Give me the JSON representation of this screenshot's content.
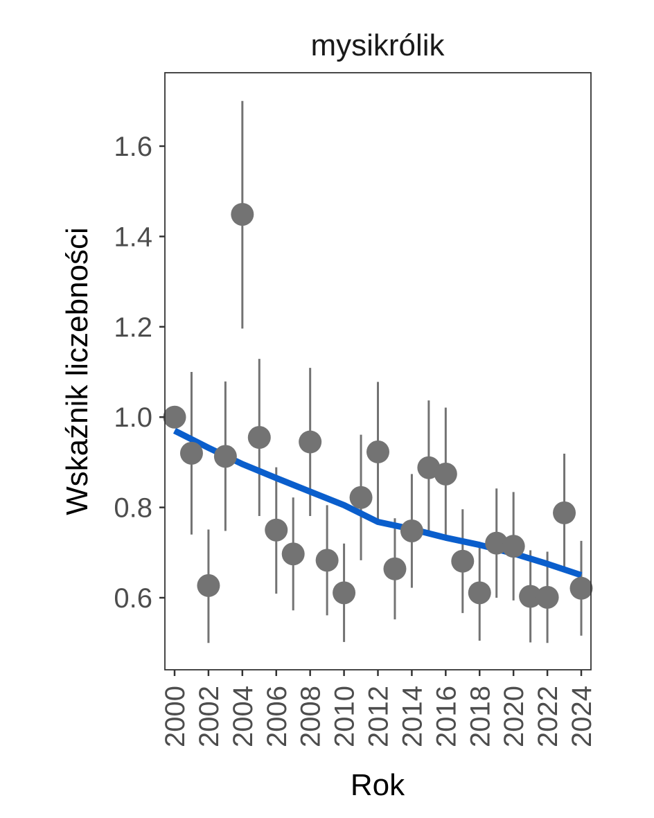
{
  "chart_data": {
    "type": "scatter",
    "title": "mysikrólik",
    "xlabel": "Rok",
    "ylabel": "Wskaźnik liczebności",
    "xlim": [
      1999.5,
      2024.5
    ],
    "ylim": [
      0.44,
      1.76
    ],
    "yticks": [
      0.6,
      0.8,
      1.0,
      1.2,
      1.4,
      1.6
    ],
    "ytick_labels": [
      "0.6",
      "0.8",
      "1.0",
      "1.2",
      "1.4",
      "1.6"
    ],
    "xticks": [
      2000,
      2002,
      2004,
      2006,
      2008,
      2010,
      2012,
      2014,
      2016,
      2018,
      2020,
      2022,
      2024
    ],
    "xtick_labels": [
      "2000",
      "2002",
      "2004",
      "2006",
      "2008",
      "2010",
      "2012",
      "2014",
      "2016",
      "2018",
      "2020",
      "2022",
      "2024"
    ],
    "grid": false,
    "points": [
      {
        "year": 2000,
        "value": 1.0,
        "lower": 1.0,
        "upper": 1.0
      },
      {
        "year": 2001,
        "value": 0.92,
        "lower": 0.74,
        "upper": 1.1
      },
      {
        "year": 2002,
        "value": 0.627,
        "lower": 0.5,
        "upper": 0.751
      },
      {
        "year": 2003,
        "value": 0.913,
        "lower": 0.748,
        "upper": 1.079
      },
      {
        "year": 2004,
        "value": 1.449,
        "lower": 1.196,
        "upper": 1.7
      },
      {
        "year": 2005,
        "value": 0.955,
        "lower": 0.781,
        "upper": 1.129
      },
      {
        "year": 2006,
        "value": 0.75,
        "lower": 0.609,
        "upper": 0.889
      },
      {
        "year": 2007,
        "value": 0.697,
        "lower": 0.572,
        "upper": 0.822
      },
      {
        "year": 2008,
        "value": 0.945,
        "lower": 0.781,
        "upper": 1.109
      },
      {
        "year": 2009,
        "value": 0.683,
        "lower": 0.561,
        "upper": 0.805
      },
      {
        "year": 2010,
        "value": 0.611,
        "lower": 0.502,
        "upper": 0.72
      },
      {
        "year": 2011,
        "value": 0.822,
        "lower": 0.683,
        "upper": 0.961
      },
      {
        "year": 2012,
        "value": 0.923,
        "lower": 0.768,
        "upper": 1.078
      },
      {
        "year": 2013,
        "value": 0.664,
        "lower": 0.552,
        "upper": 0.776
      },
      {
        "year": 2014,
        "value": 0.748,
        "lower": 0.622,
        "upper": 0.874
      },
      {
        "year": 2015,
        "value": 0.888,
        "lower": 0.739,
        "upper": 1.037
      },
      {
        "year": 2016,
        "value": 0.874,
        "lower": 0.727,
        "upper": 1.021
      },
      {
        "year": 2017,
        "value": 0.681,
        "lower": 0.566,
        "upper": 0.796
      },
      {
        "year": 2018,
        "value": 0.611,
        "lower": 0.505,
        "upper": 0.717
      },
      {
        "year": 2019,
        "value": 0.721,
        "lower": 0.6,
        "upper": 0.842
      },
      {
        "year": 2020,
        "value": 0.714,
        "lower": 0.594,
        "upper": 0.834
      },
      {
        "year": 2021,
        "value": 0.603,
        "lower": 0.501,
        "upper": 0.705
      },
      {
        "year": 2022,
        "value": 0.601,
        "lower": 0.5,
        "upper": 0.702
      },
      {
        "year": 2023,
        "value": 0.788,
        "lower": 0.657,
        "upper": 0.919
      },
      {
        "year": 2024,
        "value": 0.621,
        "lower": 0.516,
        "upper": 0.726
      }
    ],
    "trend": {
      "name": "trend",
      "x": [
        2000,
        2002,
        2004,
        2006,
        2008,
        2010,
        2012,
        2014,
        2016,
        2018,
        2020,
        2022,
        2024
      ],
      "y": [
        0.97,
        0.932,
        0.896,
        0.865,
        0.835,
        0.805,
        0.768,
        0.752,
        0.733,
        0.717,
        0.698,
        0.675,
        0.65
      ]
    },
    "colors": {
      "points": "#737373",
      "trend": "#0a5ecc",
      "frame": "#333333"
    }
  }
}
